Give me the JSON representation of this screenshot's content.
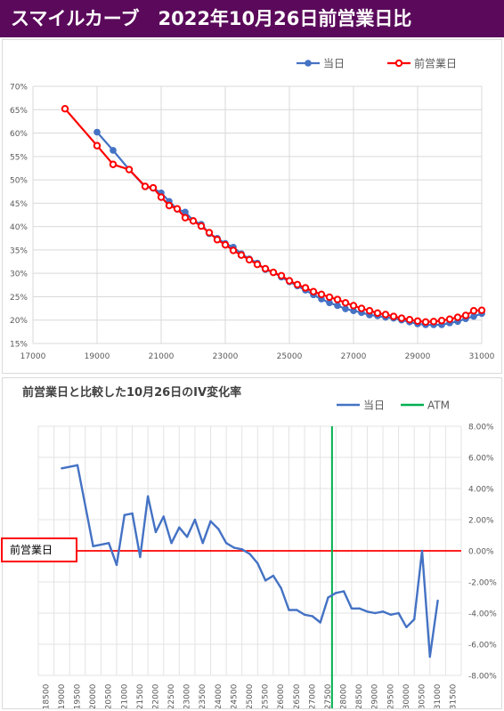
{
  "header": {
    "title": "スマイルカーブ　2022年10月26日前営業日比"
  },
  "colors": {
    "title_bg": "#5b0a5b",
    "current": "#4472c4",
    "previous": "#ff0000",
    "atm": "#00b050"
  },
  "chart_data": [
    {
      "type": "line",
      "title": "",
      "legend": "top-right",
      "xlim": [
        17000,
        31000
      ],
      "ylim": [
        15,
        70
      ],
      "x_ticks": [
        "17000",
        "19000",
        "21000",
        "23000",
        "25000",
        "27000",
        "29000",
        "31000"
      ],
      "y_ticks": [
        "15%",
        "20%",
        "25%",
        "30%",
        "35%",
        "40%",
        "45%",
        "50%",
        "55%",
        "60%",
        "65%",
        "70%"
      ],
      "grid": true,
      "series": [
        {
          "name": "当日",
          "x": [
            19000,
            19500,
            20000,
            20500,
            20750,
            21000,
            21250,
            21500,
            21750,
            22000,
            22250,
            22500,
            22750,
            23000,
            23250,
            23500,
            23750,
            24000,
            24250,
            24500,
            24750,
            25000,
            25250,
            25500,
            25750,
            26000,
            26250,
            26500,
            26750,
            27000,
            27250,
            27500,
            27750,
            28000,
            28250,
            28500,
            28750,
            29000,
            29250,
            29500,
            29750,
            30000,
            30250,
            30500,
            30750,
            31000
          ],
          "values": [
            60.2,
            56.3,
            52.2,
            48.5,
            48.2,
            47.2,
            45.4,
            43.7,
            43.1,
            41.3,
            40.5,
            38.5,
            37.5,
            36.4,
            35.6,
            34.2,
            33.1,
            32.2,
            30.8,
            30.2,
            29.2,
            28.2,
            27.3,
            26.4,
            25.4,
            24.5,
            23.7,
            23.1,
            22.4,
            22.0,
            21.6,
            21.1,
            20.9,
            20.6,
            20.4,
            20.0,
            19.6,
            19.2,
            19.0,
            19.0,
            19.0,
            19.4,
            19.7,
            20.3,
            20.8,
            21.4
          ]
        },
        {
          "name": "前営業日",
          "x": [
            18000,
            19000,
            19500,
            20000,
            20500,
            20750,
            21000,
            21250,
            21500,
            21750,
            22000,
            22250,
            22500,
            22750,
            23000,
            23250,
            23500,
            23750,
            24000,
            24250,
            24500,
            24750,
            25000,
            25250,
            25500,
            25750,
            26000,
            26250,
            26500,
            26750,
            27000,
            27250,
            27500,
            27750,
            28000,
            28250,
            28500,
            28750,
            29000,
            29250,
            29500,
            29750,
            30000,
            30250,
            30500,
            30750,
            31000
          ],
          "values": [
            65.2,
            57.3,
            53.3,
            52.2,
            48.6,
            48.3,
            46.3,
            44.5,
            43.8,
            41.9,
            41.2,
            40.1,
            38.7,
            37.2,
            36.1,
            34.9,
            33.9,
            32.9,
            31.9,
            31.0,
            30.2,
            29.5,
            28.4,
            27.6,
            26.9,
            26.1,
            25.5,
            24.9,
            24.4,
            23.7,
            23.1,
            22.5,
            22.0,
            21.5,
            21.2,
            20.8,
            20.4,
            20.1,
            19.8,
            19.6,
            19.7,
            19.9,
            20.2,
            20.6,
            21.0,
            22.0,
            22.1
          ]
        }
      ]
    },
    {
      "type": "line",
      "title": "前営業日と比較した10月26日のIV変化率",
      "legend": "top-right",
      "ylim": [
        -8,
        8
      ],
      "y_ticks": [
        "8.00%",
        "6.00%",
        "4.00%",
        "2.00%",
        "0.00%",
        "-2.00%",
        "-4.00%",
        "-6.00%",
        "-8.00%"
      ],
      "x_ticks": [
        "18500",
        "19000",
        "19500",
        "20000",
        "20500",
        "21000",
        "21500",
        "22000",
        "22500",
        "23000",
        "23500",
        "24000",
        "24500",
        "25000",
        "25500",
        "26000",
        "26500",
        "27000",
        "27500",
        "28000",
        "28500",
        "29000",
        "29500",
        "30000",
        "30500",
        "31000",
        "31500"
      ],
      "atm_x": 27625,
      "atm_label": "ATM",
      "reference_label": "前営業日",
      "grid": true,
      "series": [
        {
          "name": "当日",
          "x": [
            19000,
            19500,
            20000,
            20500,
            20750,
            21000,
            21250,
            21500,
            21750,
            22000,
            22250,
            22500,
            22750,
            23000,
            23250,
            23500,
            23750,
            24000,
            24250,
            24500,
            24750,
            25000,
            25250,
            25500,
            25750,
            26000,
            26250,
            26500,
            26750,
            27000,
            27250,
            27500,
            27750,
            28000,
            28250,
            28500,
            28750,
            29000,
            29250,
            29500,
            29750,
            30000,
            30250,
            30500,
            30750,
            31000
          ],
          "values": [
            5.3,
            5.5,
            0.3,
            0.5,
            -0.9,
            2.3,
            2.4,
            -0.4,
            3.5,
            1.2,
            2.2,
            0.5,
            1.5,
            0.9,
            2.0,
            0.5,
            1.9,
            1.4,
            0.5,
            0.2,
            0.1,
            -0.2,
            -0.8,
            -1.9,
            -1.6,
            -2.4,
            -3.8,
            -3.8,
            -4.1,
            -4.2,
            -4.6,
            -3.0,
            -2.7,
            -2.6,
            -3.7,
            -3.7,
            -3.9,
            -4.0,
            -3.9,
            -4.1,
            -4.0,
            -4.9,
            -4.4,
            0.0,
            -6.8,
            -3.2
          ]
        }
      ]
    }
  ]
}
